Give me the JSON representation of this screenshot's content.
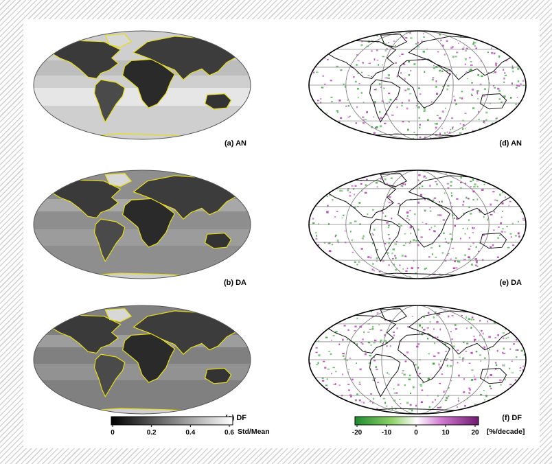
{
  "left_column": {
    "panels": [
      {
        "label": "(a) AN"
      },
      {
        "label": "(b) DA"
      },
      {
        "label": "(c) DF"
      }
    ],
    "colorbar": {
      "colors": [
        "#000000",
        "#ffffff"
      ],
      "ticks": [
        "0",
        "0.2",
        "0.4",
        "0.6"
      ],
      "range": [
        0,
        0.6
      ],
      "unit_label": "Std/Mean"
    },
    "coastline_color": "#e6dc1c"
  },
  "right_column": {
    "panels": [
      {
        "label": "(d) AN"
      },
      {
        "label": "(e) DA"
      },
      {
        "label": "(f) DF"
      }
    ],
    "colorbar": {
      "colors": [
        "#1f8a2e",
        "#8fd26a",
        "#ffffff",
        "#d07ad0",
        "#6e1a70"
      ],
      "ticks": [
        "-20",
        "-10",
        "0",
        "10",
        "20"
      ],
      "range": [
        -20,
        20
      ],
      "unit_label": "[%/decade]"
    },
    "positive_color": "#b43cb4",
    "negative_color": "#3aa83a"
  }
}
